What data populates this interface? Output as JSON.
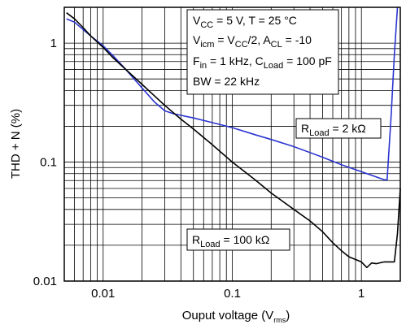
{
  "chart_data": {
    "type": "line",
    "title": "",
    "xlabel": {
      "main": "Ouput voltage (V",
      "sub": "rms",
      "end": ")"
    },
    "ylabel": "THD + N (%)",
    "x_scale": "log",
    "y_scale": "log",
    "xlim": [
      0.005,
      2.0
    ],
    "ylim": [
      0.01,
      2.0
    ],
    "x_ticks": [
      {
        "value": 0.01,
        "label": "0.01"
      },
      {
        "value": 0.1,
        "label": "0.1"
      },
      {
        "value": 1,
        "label": "1"
      }
    ],
    "y_ticks": [
      {
        "value": 0.01,
        "label": "0.01"
      },
      {
        "value": 0.1,
        "label": "0.1"
      },
      {
        "value": 1,
        "label": "1"
      }
    ],
    "grid": true,
    "series": [
      {
        "name": "R_Load = 2 kΩ",
        "color": "#2b35d0",
        "x": [
          0.0052,
          0.006,
          0.007,
          0.008,
          0.01,
          0.012,
          0.015,
          0.02,
          0.025,
          0.03,
          0.035,
          0.05,
          0.07,
          0.1,
          0.15,
          0.2,
          0.3,
          0.5,
          0.7,
          1.0,
          1.3,
          1.5,
          1.58,
          1.7,
          1.8,
          1.9
        ],
        "y": [
          1.6,
          1.5,
          1.3,
          1.15,
          0.95,
          0.78,
          0.6,
          0.42,
          0.32,
          0.27,
          0.255,
          0.235,
          0.215,
          0.195,
          0.17,
          0.155,
          0.135,
          0.11,
          0.095,
          0.083,
          0.075,
          0.071,
          0.071,
          0.25,
          0.8,
          2.0
        ]
      },
      {
        "name": "R_Load = 100 kΩ",
        "color": "#000000",
        "x": [
          0.0052,
          0.006,
          0.007,
          0.008,
          0.01,
          0.012,
          0.015,
          0.02,
          0.025,
          0.03,
          0.04,
          0.05,
          0.07,
          0.1,
          0.15,
          0.2,
          0.3,
          0.4,
          0.5,
          0.6,
          0.7,
          0.8,
          1.0,
          1.1,
          1.2,
          1.3,
          1.5,
          1.7,
          1.8,
          1.9,
          2.0
        ],
        "y": [
          1.8,
          1.6,
          1.35,
          1.15,
          0.92,
          0.75,
          0.6,
          0.45,
          0.36,
          0.3,
          0.23,
          0.19,
          0.14,
          0.1,
          0.071,
          0.055,
          0.04,
          0.032,
          0.026,
          0.021,
          0.018,
          0.016,
          0.0145,
          0.013,
          0.0142,
          0.014,
          0.0145,
          0.0145,
          0.0145,
          0.025,
          0.06
        ]
      }
    ],
    "conditions": [
      {
        "parts": [
          [
            "V",
            ""
          ],
          [
            "CC",
            "sub"
          ],
          [
            " = 5 V, T = 25 °C",
            ""
          ]
        ]
      },
      {
        "parts": [
          [
            "V",
            ""
          ],
          [
            "icm",
            "sub"
          ],
          [
            " = V",
            ""
          ],
          [
            "CC",
            "sub"
          ],
          [
            "/2, A",
            ""
          ],
          [
            "CL",
            "sub"
          ],
          [
            " = -10",
            ""
          ]
        ]
      },
      {
        "parts": [
          [
            "F",
            ""
          ],
          [
            "in",
            "sub"
          ],
          [
            " = 1 kHz, C",
            ""
          ],
          [
            "Load",
            "sub"
          ],
          [
            " = 100 pF",
            ""
          ]
        ]
      },
      {
        "parts": [
          [
            "BW = 22 kHz",
            ""
          ]
        ]
      }
    ],
    "series_labels": [
      {
        "parts": [
          [
            "R",
            ""
          ],
          [
            "Load",
            "sub"
          ],
          [
            " = 2 kΩ",
            ""
          ]
        ]
      },
      {
        "parts": [
          [
            "R",
            ""
          ],
          [
            "Load",
            "sub"
          ],
          [
            " = 100 kΩ",
            ""
          ]
        ]
      }
    ]
  }
}
